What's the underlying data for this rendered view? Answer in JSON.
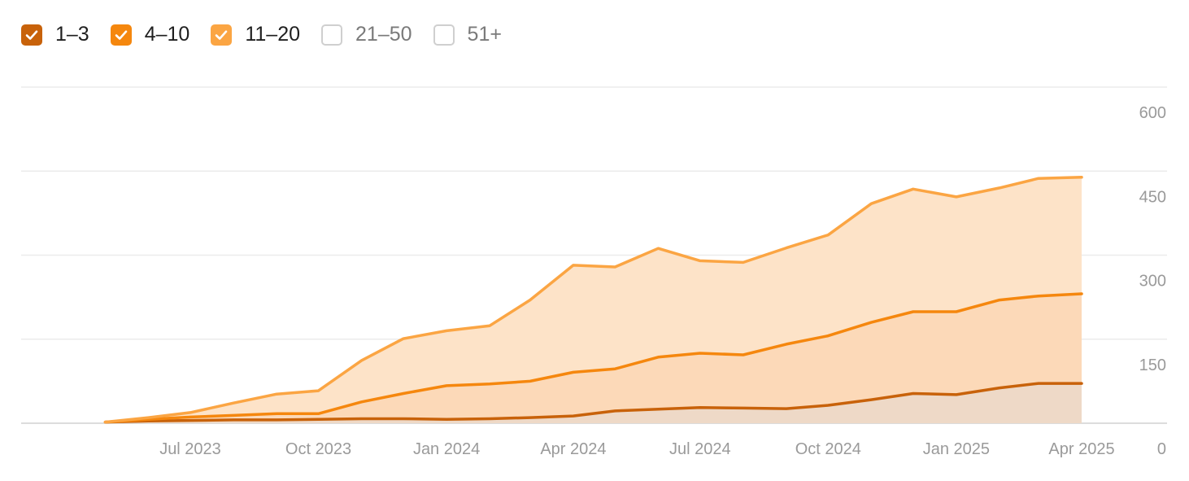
{
  "legend": [
    {
      "label": "1–3",
      "checked": true,
      "color": "#c8620a"
    },
    {
      "label": "4–10",
      "checked": true,
      "color": "#f5870e"
    },
    {
      "label": "11–20",
      "checked": true,
      "color": "#fba543"
    },
    {
      "label": "21–50",
      "checked": false,
      "color": "#cfcfcf"
    },
    {
      "label": "51+",
      "checked": false,
      "color": "#cfcfcf"
    }
  ],
  "chart_data": {
    "type": "area",
    "stacked": true,
    "x": [
      "2023-05-01",
      "2023-06-01",
      "2023-07-01",
      "2023-08-01",
      "2023-09-01",
      "2023-10-01",
      "2023-11-01",
      "2023-12-01",
      "2024-01-01",
      "2024-02-01",
      "2024-03-01",
      "2024-04-01",
      "2024-05-01",
      "2024-06-01",
      "2024-07-01",
      "2024-08-01",
      "2024-09-01",
      "2024-10-01",
      "2024-11-01",
      "2024-12-01",
      "2025-01-01",
      "2025-02-01",
      "2025-03-01",
      "2025-04-01"
    ],
    "series": [
      {
        "name": "1–3",
        "color": "#c8620a",
        "values": [
          2,
          4,
          5,
          6,
          6,
          7,
          8,
          8,
          7,
          8,
          10,
          13,
          22,
          25,
          28,
          27,
          26,
          32,
          42,
          53,
          51,
          63,
          71,
          71
        ]
      },
      {
        "name": "4–10",
        "color": "#f5870e",
        "values": [
          0,
          3,
          6,
          8,
          11,
          10,
          30,
          45,
          60,
          62,
          65,
          78,
          75,
          93,
          97,
          95,
          115,
          124,
          138,
          146,
          148,
          157,
          156,
          160
        ]
      },
      {
        "name": "11–20",
        "color": "#fba543",
        "values": [
          0,
          3,
          8,
          22,
          35,
          41,
          74,
          98,
          98,
          104,
          145,
          191,
          182,
          194,
          165,
          165,
          172,
          180,
          212,
          219,
          205,
          200,
          210,
          208
        ]
      }
    ],
    "x_ticks": [
      "Jul 2023",
      "Oct 2023",
      "Jan 2024",
      "Apr 2024",
      "Jul 2024",
      "Oct 2024",
      "Jan 2025",
      "Apr 2025"
    ],
    "y_ticks": [
      "0",
      "150",
      "300",
      "450",
      "600"
    ],
    "ylim": [
      0,
      600
    ],
    "grid": true,
    "y_axis_position": "right",
    "legend_position": "top-left"
  }
}
